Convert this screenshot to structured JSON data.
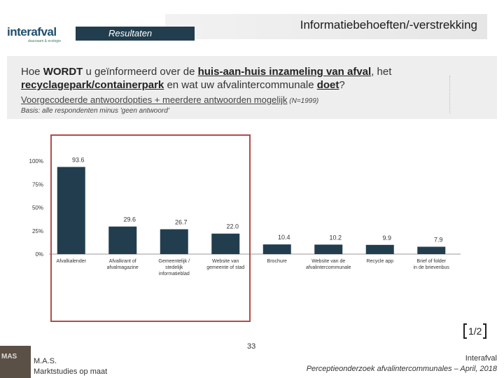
{
  "header": {
    "logo_text": "interafval",
    "logo_subtitle": "duurzaam & ecologie",
    "title": "Informatiebehoeften/-verstrekking",
    "tab_label": "Resultaten"
  },
  "question": {
    "part1": "Hoe ",
    "bold1": "WORDT",
    "part2": " u geïnformeerd over de ",
    "u1": "huis-aan-huis inzameling van afval",
    "part3": ", het ",
    "u2": "recyclagepark/containerpark",
    "part4": " en wat uw afvalintercommunale ",
    "u3": "doet",
    "part5": "?",
    "sub_text": "Voorgecodeerde antwoordopties + meerdere antwoorden mogelijk",
    "sub_n": " (N=1999)",
    "basis": "Basis: alle respondenten minus 'geen antwoord'"
  },
  "chart_data": {
    "type": "bar",
    "categories": [
      "Afvalkalender",
      "Afvalkrant of afvalmagazine",
      "Gemeentelijk / stedelijk informatieblad",
      "Website van gemeente of stad",
      "Brochure",
      "Website van de afvalintercommunale",
      "Recycle app",
      "Brief of folder in de brievenbus"
    ],
    "values": [
      93.6,
      29.6,
      26.7,
      22.0,
      10.4,
      10.2,
      9.9,
      7.9
    ],
    "value_labels": [
      "93.6",
      "29.6",
      "26.7",
      "22.0",
      "10.4",
      "10.2",
      "9.9",
      "7.9"
    ],
    "yticks": [
      "0%",
      "25%",
      "50%",
      "75%",
      "100%"
    ],
    "ylim": [
      0,
      100
    ],
    "bar_color": "#223e4e",
    "highlight_color": "#b34a4a",
    "highlighted_categories": [
      "Afvalkalender",
      "Afvalkrant of afvalmagazine",
      "Gemeentelijk / stedelijk informatieblad",
      "Website van gemeente of stad"
    ]
  },
  "pagination": {
    "label": "1/2"
  },
  "footer": {
    "logo_text": "MAS",
    "org_line1": "M.A.S.",
    "org_line2": "Marktstudies op maat",
    "page_number": "33",
    "client": "Interafval",
    "report": "Perceptieonderzoek afvalintercommunales – April, 2018"
  }
}
